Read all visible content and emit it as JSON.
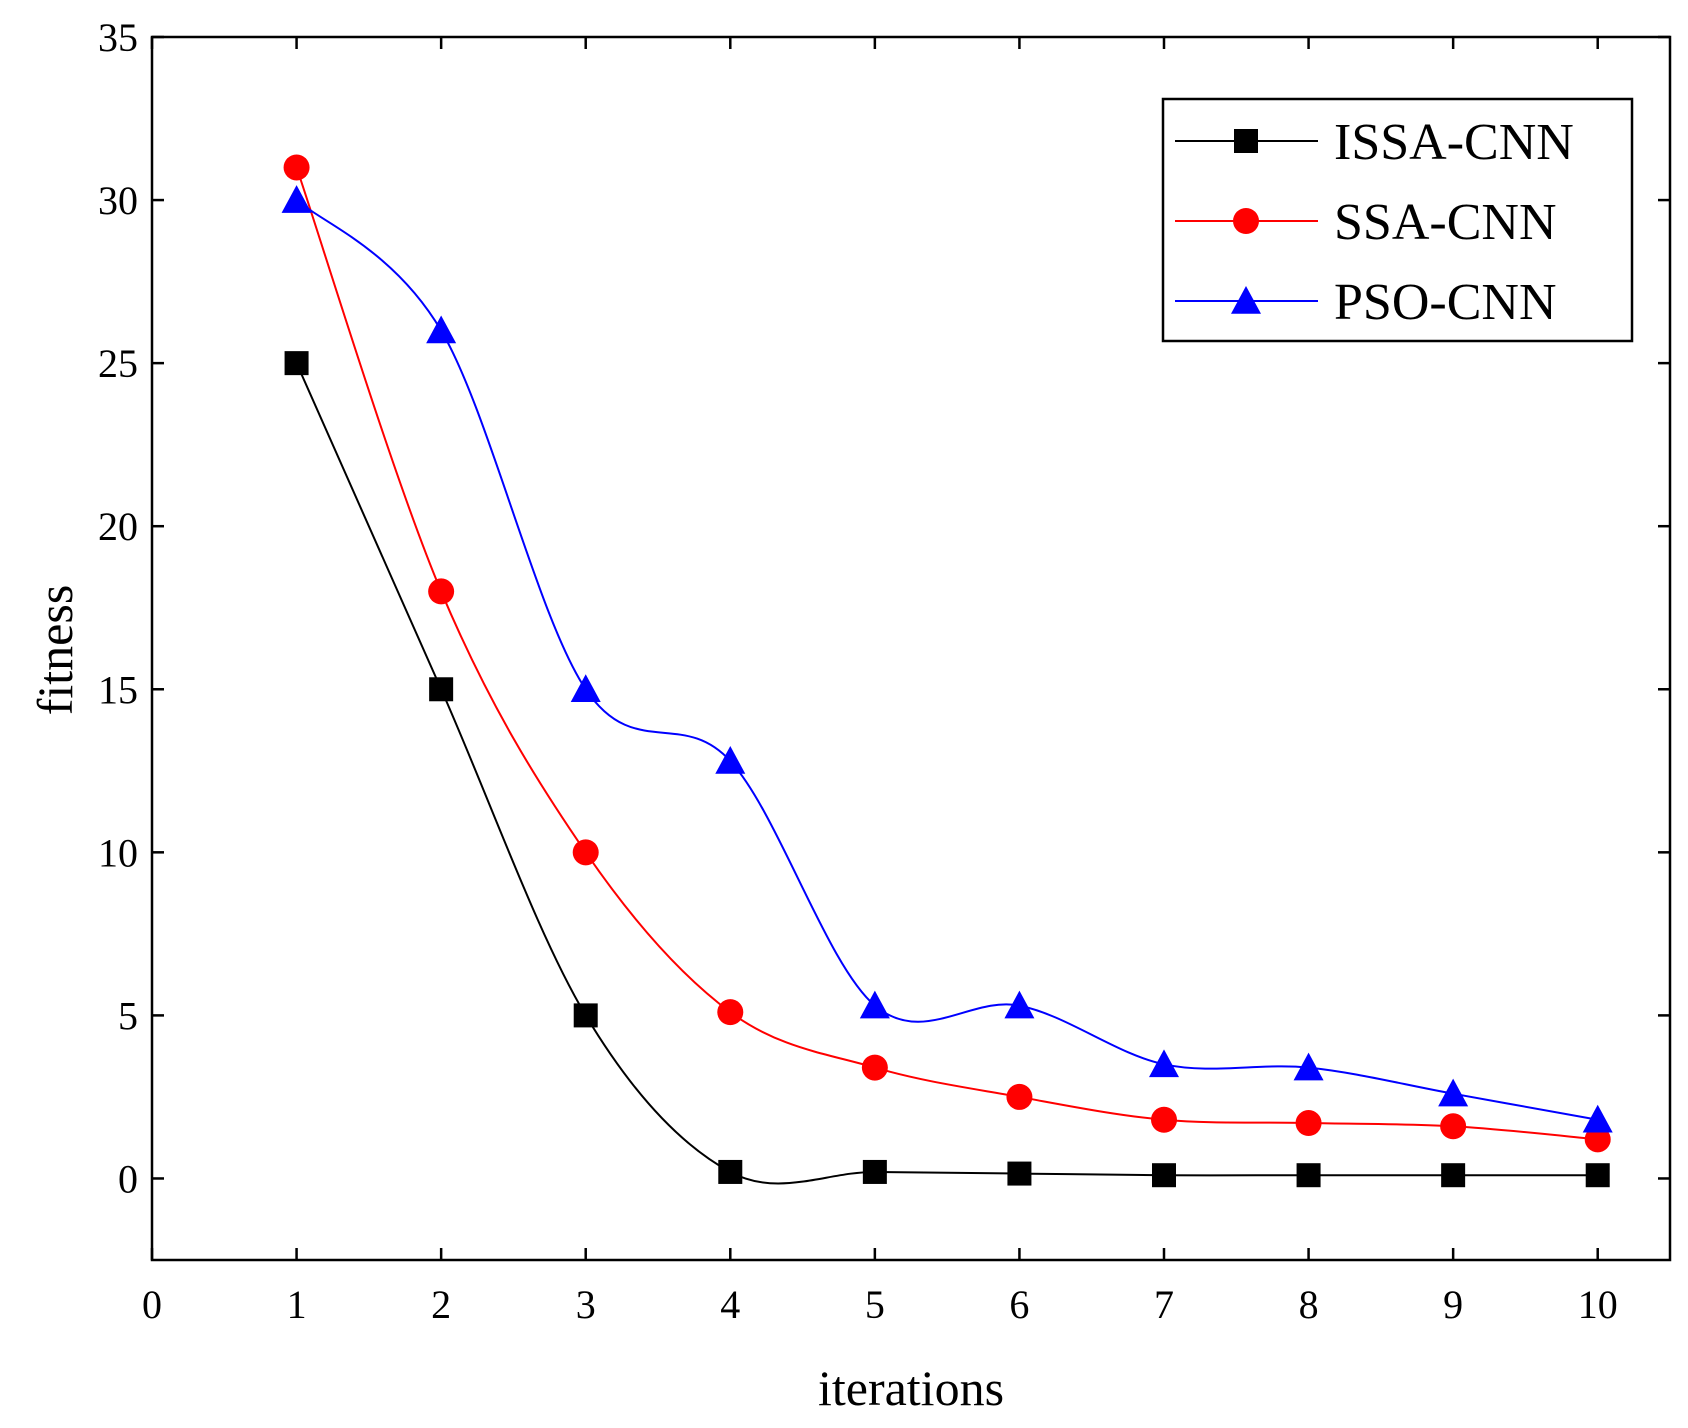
{
  "chart_data": {
    "type": "line",
    "title": "",
    "xlabel": "iterations",
    "ylabel": "fitness",
    "xlim": [
      0,
      10.5
    ],
    "ylim": [
      -2.5,
      35
    ],
    "xticks": [
      0,
      1,
      2,
      3,
      4,
      5,
      6,
      7,
      8,
      9,
      10
    ],
    "yticks": [
      0,
      5,
      10,
      15,
      20,
      25,
      30,
      35
    ],
    "grid": false,
    "legend_position": "top-right",
    "x": [
      1,
      2,
      3,
      4,
      5,
      6,
      7,
      8,
      9,
      10
    ],
    "series": [
      {
        "name": "ISSA-CNN",
        "color": "#000000",
        "marker": "square",
        "values": [
          25,
          15,
          5,
          0.2,
          0.2,
          0.15,
          0.1,
          0.1,
          0.1,
          0.1
        ]
      },
      {
        "name": "SSA-CNN",
        "color": "#ff0000",
        "marker": "circle",
        "values": [
          31,
          18,
          10,
          5.1,
          3.4,
          2.5,
          1.8,
          1.7,
          1.6,
          1.2
        ]
      },
      {
        "name": "PSO-CNN",
        "color": "#0000ff",
        "marker": "triangle",
        "values": [
          30,
          26,
          15,
          12.8,
          5.3,
          5.3,
          3.5,
          3.4,
          2.6,
          1.8
        ]
      }
    ]
  }
}
